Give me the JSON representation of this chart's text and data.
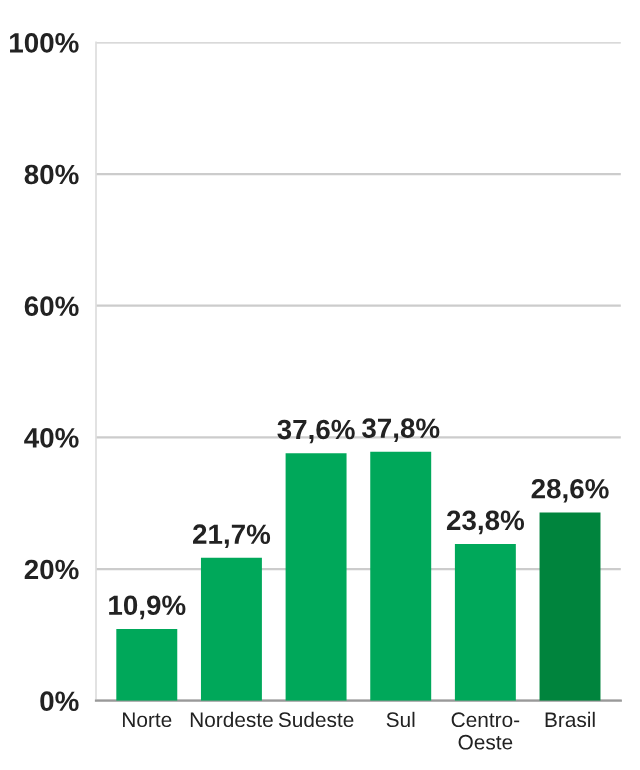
{
  "chart_data": {
    "type": "bar",
    "categories": [
      "Norte",
      "Nordeste",
      "Sudeste",
      "Sul",
      "Centro-\nOeste",
      "Brasil"
    ],
    "values": [
      10.9,
      21.7,
      37.6,
      37.8,
      23.8,
      28.6
    ],
    "colors": [
      "#00a85a",
      "#00a85a",
      "#00a85a",
      "#00a85a",
      "#00a85a",
      "#00843d"
    ],
    "value_labels": [
      "10,9%",
      "21,7%",
      "37,6%",
      "37,8%",
      "23,8%",
      "28,6%"
    ],
    "ylim": [
      0,
      100
    ],
    "yticks": [
      {
        "value": 0,
        "label": "0%"
      },
      {
        "value": 20,
        "label": "20%"
      },
      {
        "value": 40,
        "label": "40%"
      },
      {
        "value": 60,
        "label": "60%"
      },
      {
        "value": 80,
        "label": "80%"
      },
      {
        "value": 100,
        "label": "100%"
      }
    ],
    "grid": "y",
    "legend": false
  }
}
